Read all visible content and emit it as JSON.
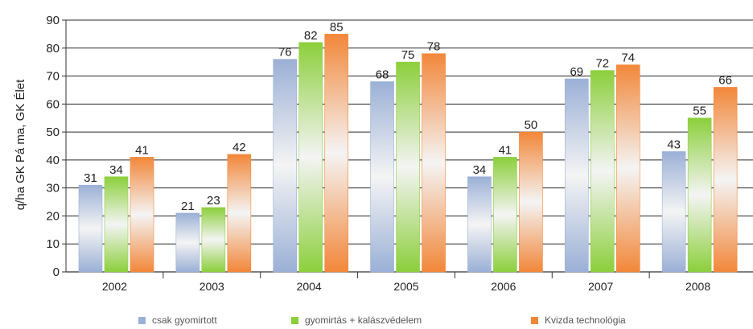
{
  "chart_data": {
    "type": "bar",
    "title": "",
    "xlabel": "",
    "ylabel": "q/ha GK Pá ma, GK Élet",
    "ylim": [
      0,
      90
    ],
    "yticks": [
      0,
      10,
      20,
      30,
      40,
      50,
      60,
      70,
      80,
      90
    ],
    "grid": true,
    "legend_position": "bottom",
    "categories": [
      "2002",
      "2003",
      "2004",
      "2005",
      "2006",
      "2007",
      "2008"
    ],
    "series": [
      {
        "name": "csak gyomirtott",
        "color": "#9bb0d6",
        "values": [
          31,
          21,
          76,
          68,
          34,
          69,
          43
        ]
      },
      {
        "name": "gyomirtás + kalászvédelem",
        "color": "#8ccf3c",
        "values": [
          34,
          23,
          82,
          75,
          41,
          72,
          55
        ]
      },
      {
        "name": "Kvizda technológia",
        "color": "#f2873a",
        "values": [
          41,
          42,
          85,
          78,
          50,
          74,
          66
        ]
      }
    ],
    "data_labels": [
      [
        "31",
        "21",
        "76",
        "68",
        "34",
        "69",
        "43"
      ],
      [
        "34",
        "23",
        "82",
        "75",
        "41",
        "72",
        "55"
      ],
      [
        "41",
        "42",
        "85",
        "78",
        "50",
        "74",
        "66"
      ]
    ]
  }
}
